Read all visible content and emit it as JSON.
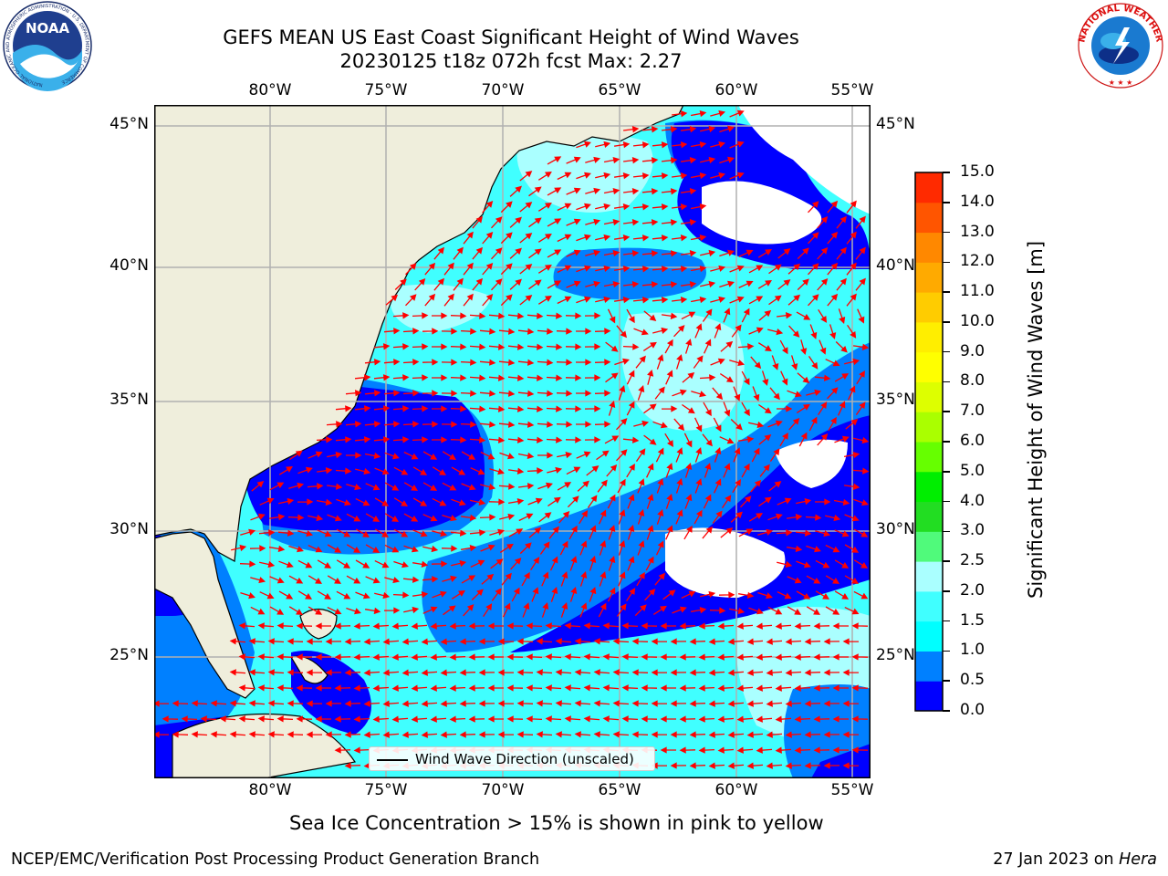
{
  "title": {
    "line1": "GEFS MEAN US East Coast Significant Height of Wind Waves",
    "line2": "20230125 t18z 072h fcst   Max: 2.27"
  },
  "map": {
    "lon_ticks": [
      "80°W",
      "75°W",
      "70°W",
      "65°W",
      "60°W",
      "55°W"
    ],
    "lat_ticks": [
      "45°N",
      "40°N",
      "35°N",
      "30°N",
      "25°N"
    ],
    "colors": {
      "land": "#efeedc",
      "coastline": "#000000",
      "grid": "#b0b0b0",
      "arrows": "#ff0000",
      "no_data": "#ffffff"
    }
  },
  "legend": {
    "label": "Wind Wave Direction (unscaled)"
  },
  "colorbar": {
    "label": "Significant Height of Wind Waves [m]",
    "ticks": [
      "0.0",
      "0.5",
      "1.0",
      "1.5",
      "2.0",
      "2.5",
      "3.0",
      "4.0",
      "5.0",
      "6.0",
      "7.0",
      "8.0",
      "9.0",
      "10.0",
      "11.0",
      "12.0",
      "13.0",
      "14.0",
      "15.0"
    ],
    "colors": [
      "#0000ff",
      "#0080ff",
      "#00ffff",
      "#40ffff",
      "#aaffff",
      "#50fa7b",
      "#22dd22",
      "#00ee00",
      "#66ff00",
      "#aaff00",
      "#ddff00",
      "#ffff00",
      "#ffee00",
      "#ffcc00",
      "#ffaa00",
      "#ff8800",
      "#ff5500",
      "#ff2a00"
    ]
  },
  "note": "Sea Ice Concentration > 15% is shown in pink to yellow",
  "footer": {
    "left": "NCEP/EMC/Verification Post Processing Product Generation Branch",
    "right_prefix": "27 Jan 2023 on ",
    "right_host": "Hera"
  },
  "logos": {
    "left_text": "NOAA",
    "left_ring": "NATIONAL OCEANIC AND ATMOSPHERIC ADMINISTRATION · U.S. DEPARTMENT OF COMMERCE",
    "right_ring": "NATIONAL WEATHER SERVICE"
  }
}
